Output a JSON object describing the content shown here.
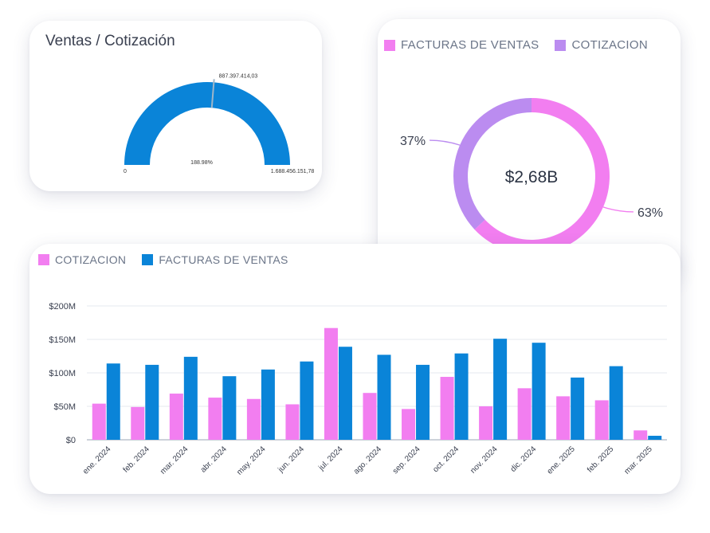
{
  "colors": {
    "pink": "#f27ef0",
    "purple": "#bb8cf0",
    "blue": "#0a84d8"
  },
  "gauge": {
    "title": "Ventas / Cotización",
    "min_label": "0",
    "max_label": "1.688.456.151,78",
    "value_label": "887.397.414,03",
    "percent_label": "188.98%"
  },
  "donut": {
    "legend": [
      {
        "label": "FACTURAS DE VENTAS",
        "color": "#f27ef0"
      },
      {
        "label": "COTIZACION",
        "color": "#bb8cf0"
      }
    ]
  },
  "bars": {
    "legend": [
      {
        "label": "COTIZACION",
        "color": "#f27ef0"
      },
      {
        "label": "FACTURAS DE VENTAS",
        "color": "#0a84d8"
      }
    ]
  },
  "chart_data": [
    {
      "type": "gauge",
      "title": "Ventas / Cotización",
      "min": 0,
      "max": 1688456151.78,
      "value": 887397414.03,
      "min_label": "0",
      "max_label": "1.688.456.151,78",
      "value_label": "887.397.414,03",
      "percent_label": "188.98%"
    },
    {
      "type": "pie",
      "center_label": "$2,68B",
      "slices": [
        {
          "name": "FACTURAS DE VENTAS",
          "value": 63,
          "label": "63%",
          "color": "#f27ef0"
        },
        {
          "name": "COTIZACION",
          "value": 37,
          "label": "37%",
          "color": "#bb8cf0"
        }
      ]
    },
    {
      "type": "bar",
      "categories": [
        "ene. 2024",
        "feb. 2024",
        "mar. 2024",
        "abr. 2024",
        "may. 2024",
        "jun. 2024",
        "jul. 2024",
        "ago. 2024",
        "sep. 2024",
        "oct. 2024",
        "nov. 2024",
        "dic. 2024",
        "ene. 2025",
        "feb. 2025",
        "mar. 2025"
      ],
      "series": [
        {
          "name": "COTIZACION",
          "color": "#f27ef0",
          "values": [
            54,
            49,
            69,
            63,
            61,
            53,
            167,
            70,
            46,
            94,
            50,
            77,
            65,
            59,
            14
          ]
        },
        {
          "name": "FACTURAS DE VENTAS",
          "color": "#0a84d8",
          "values": [
            114,
            112,
            124,
            95,
            105,
            117,
            139,
            127,
            112,
            129,
            151,
            145,
            93,
            110,
            6
          ]
        }
      ],
      "yticks": [
        "$0",
        "$50M",
        "$100M",
        "$150M",
        "$200M"
      ],
      "ylim": [
        0,
        200
      ],
      "grid": true,
      "legend_position": "top-left"
    }
  ]
}
